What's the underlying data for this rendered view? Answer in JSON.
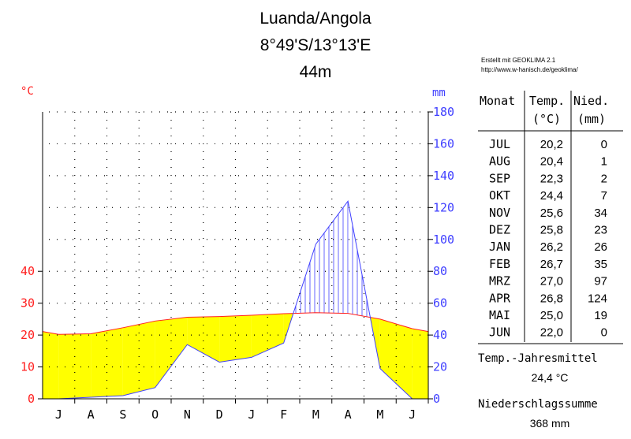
{
  "chart_data": {
    "type": "climate-diagram",
    "title_lines": [
      "Luanda/Angola",
      "8°49'S/13°13'E",
      "44m"
    ],
    "credit_lines": [
      "Erstellt mit GEOKLIMA 2.1",
      "http://www.w-hanisch.de/geoklima/"
    ],
    "temp_unit": "°C",
    "precip_unit": "mm",
    "temp_ticks": [
      0,
      10,
      20,
      30,
      40
    ],
    "precip_ticks": [
      0,
      20,
      40,
      60,
      80,
      100,
      120,
      140,
      160,
      180
    ],
    "temp_range": [
      0,
      40
    ],
    "precip_range": [
      0,
      180
    ],
    "month_initials": [
      "J",
      "A",
      "S",
      "O",
      "N",
      "D",
      "J",
      "F",
      "M",
      "A",
      "M",
      "J"
    ],
    "months": [
      "JUL",
      "AUG",
      "SEP",
      "OKT",
      "NOV",
      "DEZ",
      "JAN",
      "FEB",
      "MRZ",
      "APR",
      "MAI",
      "JUN"
    ],
    "temperature": [
      20.2,
      20.4,
      22.3,
      24.4,
      25.6,
      25.8,
      26.2,
      26.7,
      27.0,
      26.8,
      25.0,
      22.0
    ],
    "precipitation": [
      0,
      1,
      2,
      7,
      34,
      23,
      26,
      35,
      97,
      124,
      19,
      0
    ],
    "temperature_text": [
      "20,2",
      "20,4",
      "22,3",
      "24,4",
      "25,6",
      "25,8",
      "26,2",
      "26,7",
      "27,0",
      "26,8",
      "25,0",
      "22,0"
    ],
    "colors": {
      "temperature": "#ff2020",
      "precipitation": "#4040ff",
      "arid": "#ffff00"
    },
    "grid": "dotted"
  },
  "table": {
    "header_month": "Monat",
    "header_temp": "Temp.",
    "header_temp_unit": "(°C)",
    "header_precip": "Nied.",
    "header_precip_unit": "(mm)"
  },
  "summary": {
    "temp_mean_label": "Temp.-Jahresmittel",
    "temp_mean_value": "24,4 °C",
    "precip_sum_label": "Niederschlagssumme",
    "precip_sum_value": "368 mm"
  }
}
